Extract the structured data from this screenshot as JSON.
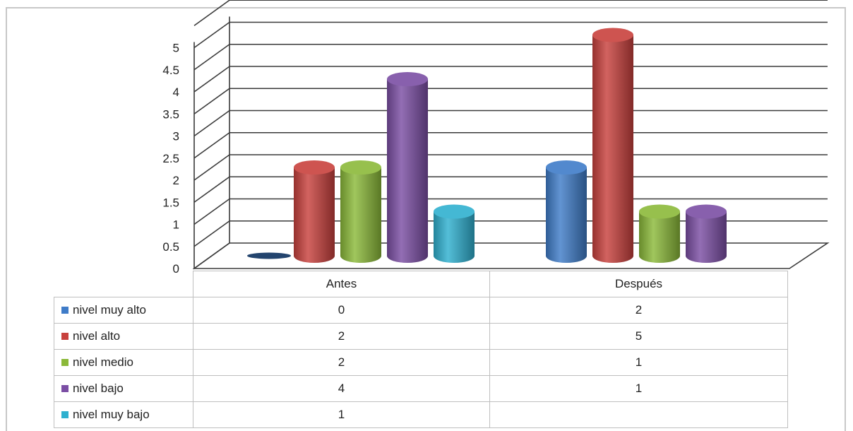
{
  "chart_data": {
    "type": "bar",
    "style": "3d-cylinder",
    "categories": [
      "Antes",
      "Después"
    ],
    "series": [
      {
        "name": "nivel muy alto",
        "color": "#3f7cc8",
        "values": [
          0,
          2
        ]
      },
      {
        "name": "nivel alto",
        "color": "#c8413d",
        "values": [
          2,
          5
        ]
      },
      {
        "name": "nivel medio",
        "color": "#8bb939",
        "values": [
          2,
          1
        ]
      },
      {
        "name": "nivel bajo",
        "color": "#7b4ea4",
        "values": [
          4,
          1
        ]
      },
      {
        "name": "nivel muy bajo",
        "color": "#2fb0cf",
        "values": [
          1,
          null
        ]
      }
    ],
    "yticks": [
      "0",
      "0.5",
      "1",
      "1.5",
      "2",
      "2.5",
      "3",
      "3.5",
      "4",
      "4.5",
      "5"
    ],
    "ylim": [
      0,
      5
    ],
    "grid": true,
    "data_table": true,
    "title": "",
    "xlabel": "",
    "ylabel": ""
  }
}
